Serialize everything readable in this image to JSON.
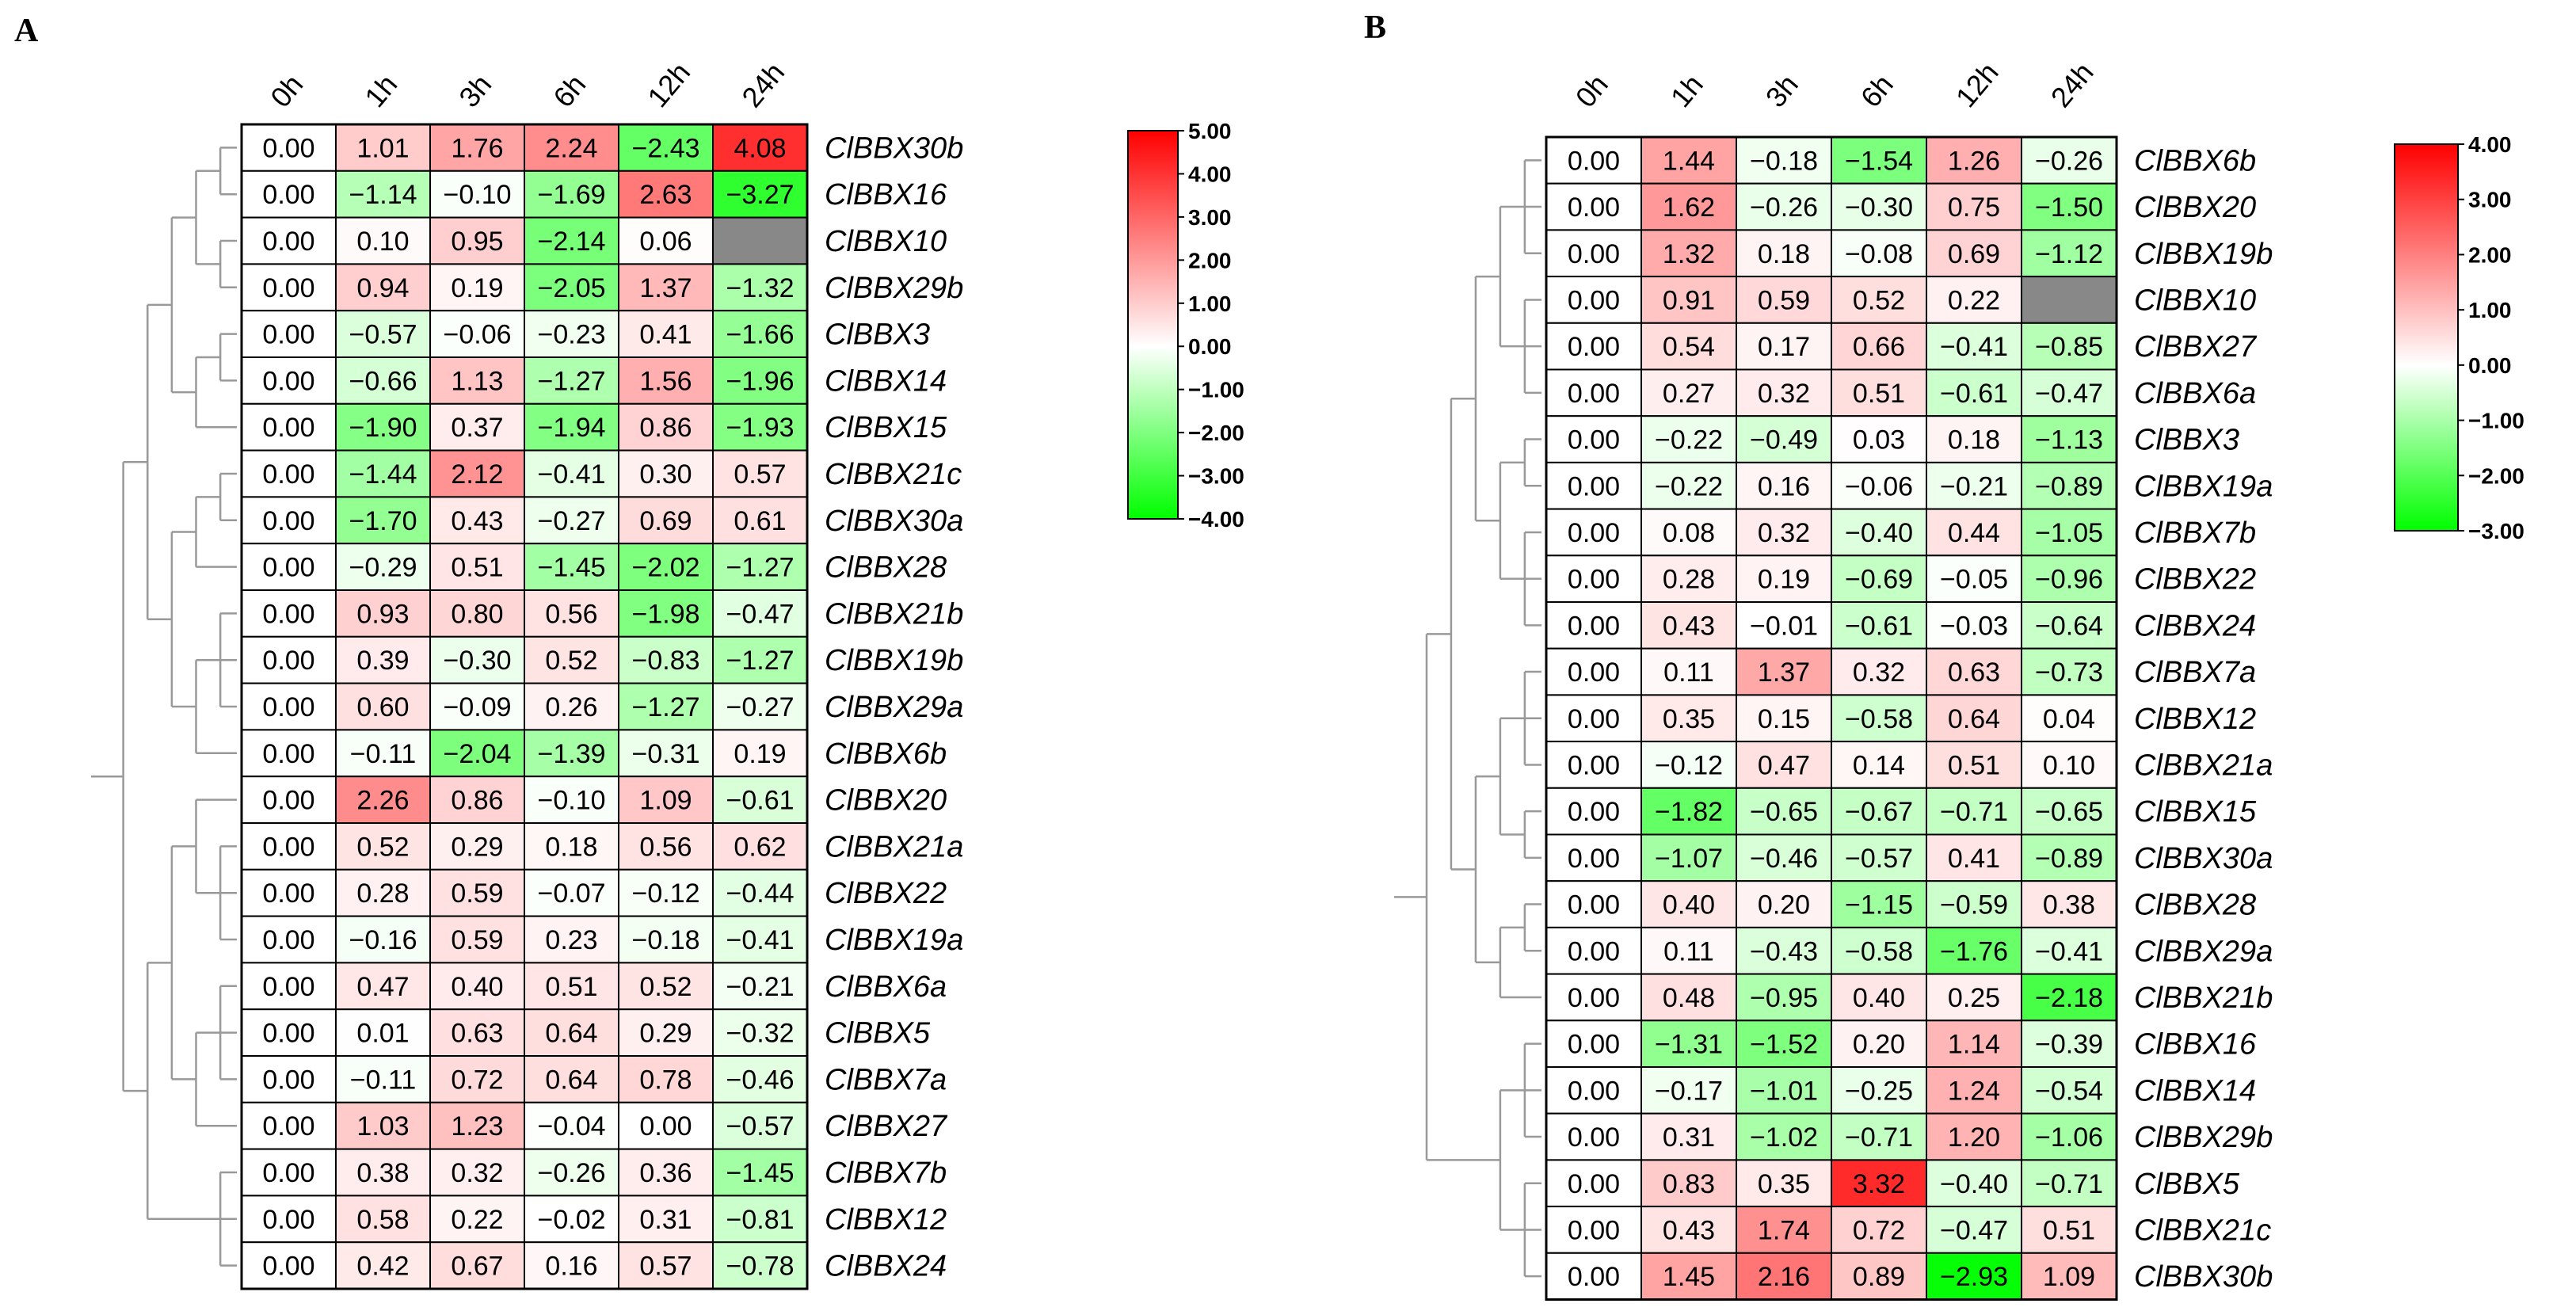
{
  "chart_data": [
    {
      "panel": "A",
      "type": "heatmap",
      "columns": [
        "0h",
        "1h",
        "3h",
        "6h",
        "12h",
        "24h"
      ],
      "rows": [
        {
          "gene": "ClBBX30b",
          "values": [
            0.0,
            1.01,
            1.76,
            2.24,
            -2.43,
            4.08
          ]
        },
        {
          "gene": "ClBBX16",
          "values": [
            0.0,
            -1.14,
            -0.1,
            -1.69,
            2.63,
            -3.27
          ]
        },
        {
          "gene": "ClBBX10",
          "values": [
            0.0,
            0.1,
            0.95,
            -2.14,
            0.06,
            null
          ]
        },
        {
          "gene": "ClBBX29b",
          "values": [
            0.0,
            0.94,
            0.19,
            -2.05,
            1.37,
            -1.32
          ]
        },
        {
          "gene": "ClBBX3",
          "values": [
            0.0,
            -0.57,
            -0.06,
            -0.23,
            0.41,
            -1.66
          ]
        },
        {
          "gene": "ClBBX14",
          "values": [
            0.0,
            -0.66,
            1.13,
            -1.27,
            1.56,
            -1.96
          ]
        },
        {
          "gene": "ClBBX15",
          "values": [
            0.0,
            -1.9,
            0.37,
            -1.94,
            0.86,
            -1.93
          ]
        },
        {
          "gene": "ClBBX21c",
          "values": [
            0.0,
            -1.44,
            2.12,
            -0.41,
            0.3,
            0.57
          ]
        },
        {
          "gene": "ClBBX30a",
          "values": [
            0.0,
            -1.7,
            0.43,
            -0.27,
            0.69,
            0.61
          ]
        },
        {
          "gene": "ClBBX28",
          "values": [
            0.0,
            -0.29,
            0.51,
            -1.45,
            -2.02,
            -1.27
          ]
        },
        {
          "gene": "ClBBX21b",
          "values": [
            0.0,
            0.93,
            0.8,
            0.56,
            -1.98,
            -0.47
          ]
        },
        {
          "gene": "ClBBX19b",
          "values": [
            0.0,
            0.39,
            -0.3,
            0.52,
            -0.83,
            -1.27
          ]
        },
        {
          "gene": "ClBBX29a",
          "values": [
            0.0,
            0.6,
            -0.09,
            0.26,
            -1.27,
            -0.27
          ]
        },
        {
          "gene": "ClBBX6b",
          "values": [
            0.0,
            -0.11,
            -2.04,
            -1.39,
            -0.31,
            0.19
          ]
        },
        {
          "gene": "ClBBX20",
          "values": [
            0.0,
            2.26,
            0.86,
            -0.1,
            1.09,
            -0.61
          ]
        },
        {
          "gene": "ClBBX21a",
          "values": [
            0.0,
            0.52,
            0.29,
            0.18,
            0.56,
            0.62
          ]
        },
        {
          "gene": "ClBBX22",
          "values": [
            0.0,
            0.28,
            0.59,
            -0.07,
            -0.12,
            -0.44
          ]
        },
        {
          "gene": "ClBBX19a",
          "values": [
            0.0,
            -0.16,
            0.59,
            0.23,
            -0.18,
            -0.41
          ]
        },
        {
          "gene": "ClBBX6a",
          "values": [
            0.0,
            0.47,
            0.4,
            0.51,
            0.52,
            -0.21
          ]
        },
        {
          "gene": "ClBBX5",
          "values": [
            0.0,
            0.01,
            0.63,
            0.64,
            0.29,
            -0.32
          ]
        },
        {
          "gene": "ClBBX7a",
          "values": [
            0.0,
            -0.11,
            0.72,
            0.64,
            0.78,
            -0.46
          ]
        },
        {
          "gene": "ClBBX27",
          "values": [
            0.0,
            1.03,
            1.23,
            -0.04,
            0.0,
            -0.57
          ]
        },
        {
          "gene": "ClBBX7b",
          "values": [
            0.0,
            0.38,
            0.32,
            -0.26,
            0.36,
            -1.45
          ]
        },
        {
          "gene": "ClBBX12",
          "values": [
            0.0,
            0.58,
            0.22,
            -0.02,
            0.31,
            -0.81
          ]
        },
        {
          "gene": "ClBBX24",
          "values": [
            0.0,
            0.42,
            0.67,
            0.16,
            0.57,
            -0.78
          ]
        }
      ],
      "scale": {
        "min": -4.0,
        "max": 5.0,
        "ticks": [
          "5.00",
          "4.00",
          "3.00",
          "2.00",
          "1.00",
          "0.00",
          "-1.00",
          "-2.00",
          "-3.00",
          "-4.00"
        ],
        "high_color": "#ff0000",
        "mid_color": "#ffffff",
        "low_color": "#00ff00",
        "missing_color": "#888888"
      },
      "dendrogram_order": [
        [
          0,
          1
        ],
        [
          2,
          3
        ],
        [
          4,
          5
        ],
        6,
        [
          7,
          8
        ],
        9,
        [
          10,
          11,
          12
        ],
        13,
        14,
        [
          15,
          16,
          17
        ],
        [
          18,
          19,
          20
        ],
        21,
        [
          22,
          23,
          24
        ]
      ]
    },
    {
      "panel": "B",
      "type": "heatmap",
      "columns": [
        "0h",
        "1h",
        "3h",
        "6h",
        "12h",
        "24h"
      ],
      "rows": [
        {
          "gene": "ClBBX6b",
          "values": [
            0.0,
            1.44,
            -0.18,
            -1.54,
            1.26,
            -0.26
          ]
        },
        {
          "gene": "ClBBX20",
          "values": [
            0.0,
            1.62,
            -0.26,
            -0.3,
            0.75,
            -1.5
          ]
        },
        {
          "gene": "ClBBX19b",
          "values": [
            0.0,
            1.32,
            0.18,
            -0.08,
            0.69,
            -1.12
          ]
        },
        {
          "gene": "ClBBX10",
          "values": [
            0.0,
            0.91,
            0.59,
            0.52,
            0.22,
            null
          ]
        },
        {
          "gene": "ClBBX27",
          "values": [
            0.0,
            0.54,
            0.17,
            0.66,
            -0.41,
            -0.85
          ]
        },
        {
          "gene": "ClBBX6a",
          "values": [
            0.0,
            0.27,
            0.32,
            0.51,
            -0.61,
            -0.47
          ]
        },
        {
          "gene": "ClBBX3",
          "values": [
            0.0,
            -0.22,
            -0.49,
            0.03,
            0.18,
            -1.13
          ]
        },
        {
          "gene": "ClBBX19a",
          "values": [
            0.0,
            -0.22,
            0.16,
            -0.06,
            -0.21,
            -0.89
          ]
        },
        {
          "gene": "ClBBX7b",
          "values": [
            0.0,
            0.08,
            0.32,
            -0.4,
            0.44,
            -1.05
          ]
        },
        {
          "gene": "ClBBX22",
          "values": [
            0.0,
            0.28,
            0.19,
            -0.69,
            -0.05,
            -0.96
          ]
        },
        {
          "gene": "ClBBX24",
          "values": [
            0.0,
            0.43,
            -0.01,
            -0.61,
            -0.03,
            -0.64
          ]
        },
        {
          "gene": "ClBBX7a",
          "values": [
            0.0,
            0.11,
            1.37,
            0.32,
            0.63,
            -0.73
          ]
        },
        {
          "gene": "ClBBX12",
          "values": [
            0.0,
            0.35,
            0.15,
            -0.58,
            0.64,
            0.04
          ]
        },
        {
          "gene": "ClBBX21a",
          "values": [
            0.0,
            -0.12,
            0.47,
            0.14,
            0.51,
            0.1
          ]
        },
        {
          "gene": "ClBBX15",
          "values": [
            0.0,
            -1.82,
            -0.65,
            -0.67,
            -0.71,
            -0.65
          ]
        },
        {
          "gene": "ClBBX30a",
          "values": [
            0.0,
            -1.07,
            -0.46,
            -0.57,
            0.41,
            -0.89
          ]
        },
        {
          "gene": "ClBBX28",
          "values": [
            0.0,
            0.4,
            0.2,
            -1.15,
            -0.59,
            0.38
          ]
        },
        {
          "gene": "ClBBX29a",
          "values": [
            0.0,
            0.11,
            -0.43,
            -0.58,
            -1.76,
            -0.41
          ]
        },
        {
          "gene": "ClBBX21b",
          "values": [
            0.0,
            0.48,
            -0.95,
            0.4,
            0.25,
            -2.18
          ]
        },
        {
          "gene": "ClBBX16",
          "values": [
            0.0,
            -1.31,
            -1.52,
            0.2,
            1.14,
            -0.39
          ]
        },
        {
          "gene": "ClBBX14",
          "values": [
            0.0,
            -0.17,
            -1.01,
            -0.25,
            1.24,
            -0.54
          ]
        },
        {
          "gene": "ClBBX29b",
          "values": [
            0.0,
            0.31,
            -1.02,
            -0.71,
            1.2,
            -1.06
          ]
        },
        {
          "gene": "ClBBX5",
          "values": [
            0.0,
            0.83,
            0.35,
            3.32,
            -0.4,
            -0.71
          ]
        },
        {
          "gene": "ClBBX21c",
          "values": [
            0.0,
            0.43,
            1.74,
            0.72,
            -0.47,
            0.51
          ]
        },
        {
          "gene": "ClBBX30b",
          "values": [
            0.0,
            1.45,
            2.16,
            0.89,
            -2.93,
            1.09
          ]
        }
      ],
      "scale": {
        "min": -3.0,
        "max": 4.0,
        "ticks": [
          "4.00",
          "3.00",
          "2.00",
          "1.00",
          "0.00",
          "-1.00",
          "-2.00",
          "-3.00"
        ],
        "high_color": "#ff0000",
        "mid_color": "#ffffff",
        "low_color": "#00ff00",
        "missing_color": "#888888"
      },
      "dendrogram_order": [
        [
          0,
          1,
          2
        ],
        [
          3,
          4,
          5
        ],
        [
          6,
          7
        ],
        [
          8,
          9,
          10
        ],
        [
          11,
          12,
          13
        ],
        [
          14,
          15
        ],
        [
          16,
          17
        ],
        18,
        [
          19,
          20,
          21
        ],
        [
          22,
          23,
          24
        ]
      ]
    }
  ]
}
